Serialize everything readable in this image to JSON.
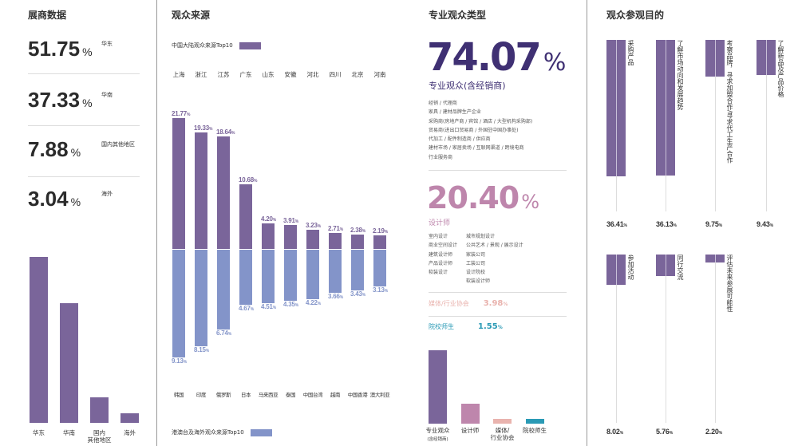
{
  "colors": {
    "purple": "#7a659a",
    "blue": "#8394c9",
    "dark_purple": "#3f3073",
    "pink": "#be86ac",
    "light_pink": "#e9b3ae",
    "teal": "#2a9ab5"
  },
  "exhibitors": {
    "title": "展商数据",
    "stats": [
      {
        "value": "51.75",
        "unit": "%",
        "label": "华东"
      },
      {
        "value": "37.33",
        "unit": "%",
        "label": "华南"
      },
      {
        "value": "7.88",
        "unit": "%",
        "label": "国内其他地区"
      },
      {
        "value": "3.04",
        "unit": "%",
        "label": "海外"
      }
    ]
  },
  "visitor_source": {
    "title": "观众来源",
    "legend_top": "中国大陆观众来源Top10",
    "legend_bottom": "港澳台及海外观众来源Top10"
  },
  "visitor_type": {
    "title": "专业观众类型",
    "pro_value": "74.07",
    "pro_unit": "%",
    "pro_label": "专业观众(含经销商)",
    "pro_items": [
      "经销 / 代理商",
      "家具 / 建材品牌生产企业",
      "采购商(房地产商 / 宾馆 / 酒店 / 大型机构采购部)",
      "贸易商(进出口贸易商 / 外国驻中国办事处)",
      "代加工 / 配件制造商 / 供应商",
      "建材市场 / 家居卖场 / 互联网渠道 / 跨境电商",
      "行业服务商"
    ],
    "designer_value": "20.40",
    "designer_unit": "%",
    "designer_label": "设计师",
    "designer_col1": [
      "室内设计",
      "商业空间设计",
      "建筑设计师",
      "产品设计师",
      "软装设计"
    ],
    "designer_col2": [
      "城市规划设计",
      "公共艺术 / 景观 / 展示设计",
      "家装公司",
      "工装公司",
      "设计院校",
      "软装设计师"
    ],
    "media_label": "媒体/行业协会",
    "media_value": "3.98",
    "media_unit": "%",
    "school_label": "院校师生",
    "school_value": "1.55",
    "school_unit": "%"
  },
  "purpose": {
    "title": "观众参观目的"
  },
  "chart_data": [
    {
      "type": "bar",
      "categories": [
        "华东",
        "华南",
        "国内\n其他地区",
        "海外"
      ],
      "values": [
        51.75,
        37.33,
        7.88,
        3.04
      ]
    },
    {
      "type": "bar",
      "series": [
        {
          "name": "中国大陆观众来源Top10",
          "categories": [
            "上海",
            "浙江",
            "江苏",
            "广东",
            "山东",
            "安徽",
            "河北",
            "四川",
            "北京",
            "河南"
          ],
          "values": [
            21.77,
            19.33,
            18.64,
            10.68,
            4.2,
            3.91,
            3.23,
            2.71,
            2.38,
            2.19
          ]
        },
        {
          "name": "港澳台及海外观众来源Top10",
          "categories": [
            "韩国",
            "印度",
            "俄罗斯",
            "日本",
            "马来西亚",
            "泰国",
            "中国台湾",
            "越南",
            "中国香港",
            "澳大利亚"
          ],
          "values": [
            9.13,
            8.15,
            6.74,
            4.67,
            4.51,
            4.35,
            4.22,
            3.66,
            3.43,
            3.13
          ]
        }
      ]
    },
    {
      "type": "bar",
      "categories": [
        "专业观众",
        "设计师",
        "媒体/\n行业协会",
        "院校师生"
      ],
      "sub_label": "(含经销商)",
      "values": [
        74.07,
        20.4,
        3.98,
        1.55
      ]
    },
    {
      "type": "bar",
      "categories": [
        "采购产品",
        "了解市场动向和发展趋势",
        "考察品牌，寻求加盟合作/寻求代工生产合作",
        "了解新品及产品价格",
        "参加活动",
        "同行交流",
        "评估未来参展可能性"
      ],
      "values": [
        36.41,
        36.13,
        9.75,
        9.43,
        8.02,
        5.76,
        2.2
      ]
    }
  ]
}
